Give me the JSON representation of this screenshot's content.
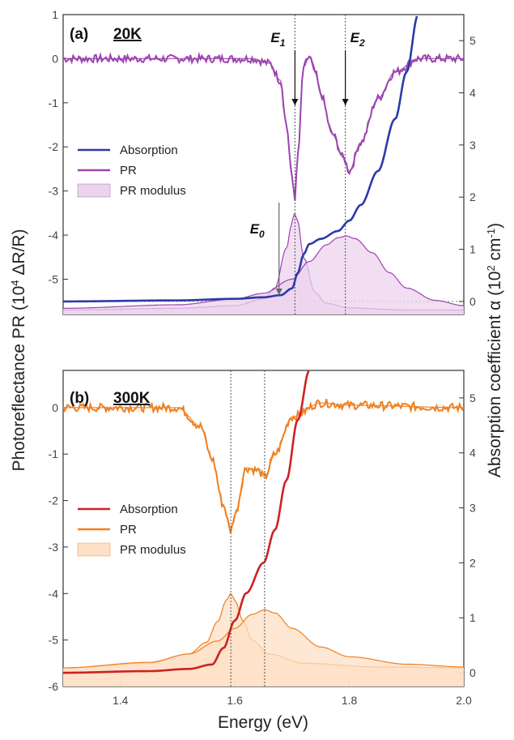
{
  "figure": {
    "y_left_title_main": "Photoreflectance PR (10",
    "y_left_title_sup": "4",
    "y_left_title_tail": " ΔR/R)",
    "y_right_title_main": "Absorption coefficient α (10",
    "y_right_title_sup": "2",
    "y_right_title_mid": " cm",
    "y_right_title_sup2": "-1",
    "y_right_title_tail": ")"
  },
  "chart_data": [
    {
      "type": "line",
      "panel_label": "(a)",
      "temperature_label": "20K",
      "xlabel": "",
      "ylabel": "Photoreflectance PR (10^4 ΔR/R)",
      "ylabel_right": "Absorption coefficient α (10^2 cm^-1)",
      "xlim": [
        1.3,
        2.0
      ],
      "ylim": [
        -5.8,
        1.0
      ],
      "ylim_right": [
        -0.25,
        5.5
      ],
      "y_ticks": [
        "1",
        "0",
        "-1",
        "-2",
        "-3",
        "-4",
        "-5"
      ],
      "y_ticks_right": [
        "0",
        "1",
        "2",
        "3",
        "4",
        "5"
      ],
      "colors": {
        "absorption": "#2b3ba6",
        "pr": "#9c44b0",
        "modulus": "#9c44b0",
        "modulus_fill": "#ecd3ee"
      },
      "legend": {
        "position": "middle-left",
        "entries": [
          "Absorption",
          "PR",
          "PR modulus"
        ]
      },
      "annotations": [
        {
          "text": "E",
          "sub": "1",
          "x": 1.705
        },
        {
          "text": "E",
          "sub": "2",
          "x": 1.793
        },
        {
          "text": "E",
          "sub": "0",
          "x": 1.68
        }
      ],
      "vlines": [
        1.705,
        1.793
      ],
      "series": [
        {
          "name": "Absorption",
          "axis": "right",
          "x": [
            1.3,
            1.5,
            1.6,
            1.65,
            1.68,
            1.7,
            1.71,
            1.72,
            1.73,
            1.75,
            1.78,
            1.8,
            1.82,
            1.85,
            1.88,
            1.9,
            1.92
          ],
          "y": [
            0.0,
            0.02,
            0.05,
            0.08,
            0.12,
            0.25,
            0.55,
            0.9,
            1.1,
            1.2,
            1.35,
            1.55,
            1.85,
            2.5,
            3.5,
            4.4,
            5.5
          ]
        },
        {
          "name": "PR",
          "axis": "left",
          "x": [
            1.3,
            1.55,
            1.63,
            1.66,
            1.68,
            1.69,
            1.7,
            1.705,
            1.71,
            1.72,
            1.73,
            1.74,
            1.75,
            1.77,
            1.79,
            1.8,
            1.82,
            1.85,
            1.88,
            1.92,
            2.0
          ],
          "y": [
            0.0,
            0.0,
            0.0,
            -0.1,
            -0.5,
            -1.5,
            -2.7,
            -3.15,
            -2.2,
            -0.2,
            0.05,
            -0.3,
            -0.8,
            -1.7,
            -2.25,
            -2.55,
            -1.9,
            -0.9,
            -0.3,
            0.0,
            0.0
          ]
        },
        {
          "name": "PR modulus",
          "axis": "left",
          "component": "E1",
          "x": [
            1.3,
            1.5,
            1.6,
            1.65,
            1.67,
            1.69,
            1.7,
            1.705,
            1.71,
            1.72,
            1.74,
            1.76,
            1.8,
            1.9,
            2.0
          ],
          "y": [
            -5.7,
            -5.66,
            -5.6,
            -5.45,
            -5.2,
            -4.3,
            -3.7,
            -3.5,
            -3.7,
            -4.5,
            -5.3,
            -5.55,
            -5.65,
            -5.7,
            -5.7
          ]
        },
        {
          "name": "PR modulus",
          "axis": "left",
          "component": "E2",
          "x": [
            1.3,
            1.5,
            1.6,
            1.65,
            1.7,
            1.73,
            1.76,
            1.78,
            1.795,
            1.81,
            1.84,
            1.87,
            1.9,
            1.95,
            2.0
          ],
          "y": [
            -5.66,
            -5.58,
            -5.45,
            -5.32,
            -5.0,
            -4.6,
            -4.22,
            -4.06,
            -4.02,
            -4.08,
            -4.4,
            -4.85,
            -5.2,
            -5.48,
            -5.6
          ]
        }
      ]
    },
    {
      "type": "line",
      "panel_label": "(b)",
      "temperature_label": "300K",
      "xlabel": "Energy (eV)",
      "ylabel": "Photoreflectance PR (10^4 ΔR/R)",
      "ylabel_right": "Absorption coefficient α (10^2 cm^-1)",
      "xlim": [
        1.3,
        2.0
      ],
      "ylim": [
        -6.0,
        0.8
      ],
      "ylim_right": [
        -0.25,
        5.5
      ],
      "x_ticks": [
        "1.4",
        "1.6",
        "1.8",
        "2.0"
      ],
      "y_ticks": [
        "0",
        "-1",
        "-2",
        "-3",
        "-4",
        "-5",
        "-6"
      ],
      "y_ticks_right": [
        "0",
        "1",
        "2",
        "3",
        "4",
        "5"
      ],
      "colors": {
        "absorption": "#cc2222",
        "pr": "#f07f1f",
        "modulus": "#f07f1f",
        "modulus_fill": "#fde0c6"
      },
      "legend": {
        "position": "lower-left",
        "entries": [
          "Absorption",
          "PR",
          "PR modulus"
        ]
      },
      "vlines": [
        1.593,
        1.652
      ],
      "series": [
        {
          "name": "Absorption",
          "axis": "right",
          "x": [
            1.3,
            1.45,
            1.52,
            1.56,
            1.58,
            1.6,
            1.62,
            1.65,
            1.67,
            1.69,
            1.71,
            1.73
          ],
          "y": [
            0.0,
            0.03,
            0.07,
            0.15,
            0.45,
            0.95,
            1.45,
            2.0,
            2.6,
            3.5,
            4.6,
            5.5
          ]
        },
        {
          "name": "PR",
          "axis": "left",
          "x": [
            1.3,
            1.5,
            1.54,
            1.56,
            1.58,
            1.593,
            1.6,
            1.62,
            1.64,
            1.652,
            1.67,
            1.7,
            1.75,
            1.8,
            2.0
          ],
          "y": [
            0.0,
            0.0,
            -0.4,
            -1.1,
            -2.1,
            -2.65,
            -2.3,
            -1.3,
            -1.35,
            -1.5,
            -1.0,
            -0.2,
            0.1,
            0.05,
            0.0
          ]
        },
        {
          "name": "PR modulus",
          "axis": "left",
          "component": "E1",
          "x": [
            1.3,
            1.45,
            1.52,
            1.55,
            1.57,
            1.585,
            1.593,
            1.6,
            1.615,
            1.63,
            1.66,
            1.72,
            1.85,
            2.0
          ],
          "y": [
            -5.6,
            -5.5,
            -5.3,
            -5.05,
            -4.6,
            -4.15,
            -4.0,
            -4.15,
            -4.6,
            -5.0,
            -5.3,
            -5.5,
            -5.58,
            -5.6
          ]
        },
        {
          "name": "PR modulus",
          "axis": "left",
          "component": "E2",
          "x": [
            1.3,
            1.45,
            1.52,
            1.57,
            1.6,
            1.63,
            1.652,
            1.67,
            1.7,
            1.75,
            1.8,
            1.9,
            2.0
          ],
          "y": [
            -5.6,
            -5.48,
            -5.3,
            -5.02,
            -4.75,
            -4.45,
            -4.35,
            -4.42,
            -4.75,
            -5.15,
            -5.36,
            -5.52,
            -5.58
          ]
        }
      ]
    }
  ]
}
